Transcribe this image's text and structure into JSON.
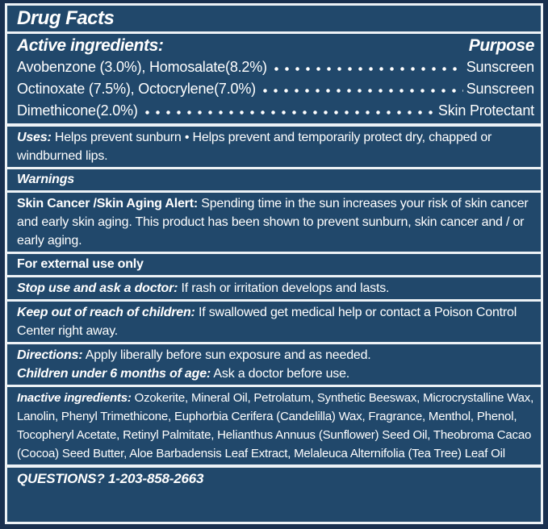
{
  "title": "Drug Facts",
  "colors": {
    "panel": "#21486B",
    "outer_border": "#19304F",
    "rule_line": "#EDF2F6",
    "text": "#FFFFFF"
  },
  "active": {
    "heading": "Active ingredients:",
    "purpose_label": "Purpose",
    "rows": [
      {
        "name": "Avobenzone (3.0%), Homosalate(8.2%)",
        "purpose": "Sunscreen"
      },
      {
        "name": "Octinoxate (7.5%), Octocrylene(7.0%)",
        "purpose": "Sunscreen"
      },
      {
        "name": "Dimethicone(2.0%)",
        "purpose": "Skin Protectant"
      }
    ]
  },
  "sections": {
    "uses": {
      "lead": "Uses:",
      "text": "Helps prevent sunburn • Helps prevent and temporarily protect dry, chapped or windburned lips."
    },
    "warnings": {
      "heading": "Warnings"
    },
    "alert": {
      "lead": "Skin Cancer /Skin Aging Alert:",
      "text": "Spending time in the sun increases your risk of skin cancer and early skin aging. This product has been shown to prevent sunburn, skin cancer and / or early aging."
    },
    "external": {
      "heading": "For external use only"
    },
    "stop_use": {
      "lead": "Stop use and ask a doctor:",
      "text": "If rash or irritation develops and lasts."
    },
    "keep_out": {
      "lead": "Keep out of reach of children:",
      "text": "If swallowed get medical help or contact a Poison Control Center right away."
    },
    "directions": {
      "lead": "Directions:",
      "text": "Apply liberally before sun exposure and as needed."
    },
    "children": {
      "lead": "Children under 6 months of age:",
      "text": "Ask a doctor before use."
    },
    "inactive": {
      "lead": "Inactive ingredients:",
      "text": "Ozokerite, Mineral Oil, Petrolatum, Synthetic Beeswax, Microcrystalline Wax, Lanolin, Phenyl Trimethicone, Euphorbia Cerifera (Candelilla) Wax, Fragrance, Menthol, Phenol, Tocopheryl Acetate, Retinyl Palmitate, Helianthus Annuus (Sunflower) Seed Oil, Theobroma Cacao (Cocoa) Seed Butter, Aloe Barbadensis Leaf Extract, Melaleuca Alternifolia (Tea Tree) Leaf Oil"
    },
    "questions": {
      "text": "QUESTIONS? 1-203-858-2663"
    }
  }
}
